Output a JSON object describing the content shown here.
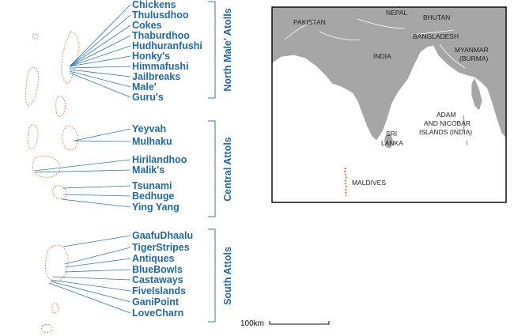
{
  "atoll_groups": [
    {
      "name": "North Male' Atolls",
      "sites": [
        "Chickens",
        "Thulusdhoo",
        "Cokes",
        "Thaburdhoo",
        "Hudhuranfushi",
        "Honky's",
        "Himmafushi",
        "Jailbreaks",
        "Male'",
        "Guru's"
      ]
    },
    {
      "name": "Central Attols",
      "sites": [
        "Yeyvah",
        "Mulhaku",
        "Hirilandhoo",
        "Malik's",
        "Tsunami",
        "Bedhuge",
        "Ying Yang"
      ]
    },
    {
      "name": "South Attols",
      "sites": [
        "GaafuDhaalu",
        "TigerStripes",
        "Antiques",
        "BlueBowls",
        "Castaways",
        "FiveIslands",
        "GaniPoint",
        "LoveCharn"
      ]
    }
  ],
  "inset_map": {
    "labels": {
      "pakistan": "PAKISTAN",
      "nepal": "NEPAL",
      "bhutan": "BHUTAN",
      "bangladesh": "BANGLADESH",
      "myanmar_1": "MYANMAR",
      "myanmar_2": "(BURMA)",
      "india": "INDIA",
      "sri_lanka_1": "SRI",
      "sri_lanka_2": "LANKA",
      "andaman_1": "ADAM",
      "andaman_2": "AND NICOBAR",
      "andaman_3": "ISLANDS (INDIA)",
      "maldives": "MALDIVES"
    },
    "colors": {
      "land": "#a6a6a6",
      "water": "#ffffff",
      "maldives": "#e06a2a"
    }
  },
  "scale_bar": {
    "label": "100km"
  },
  "colors": {
    "label_text": "#1f6aa5",
    "leader_lines": "#2f7bb8",
    "atoll_outline": "#e87a3a"
  }
}
